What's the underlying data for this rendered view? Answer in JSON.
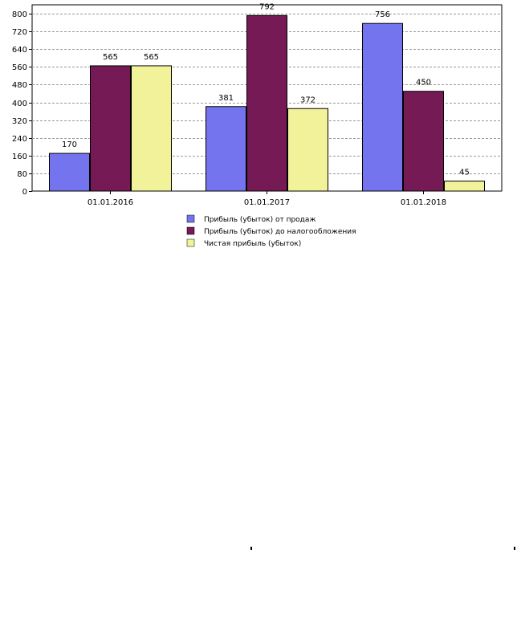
{
  "chart_data": {
    "type": "bar",
    "categories": [
      "01.01.2016",
      "01.01.2017",
      "01.01.2018"
    ],
    "series": [
      {
        "name": "Прибыль (убыток) от продаж",
        "color": "#7474ee",
        "values": [
          170,
          381,
          756
        ]
      },
      {
        "name": "Прибыль (убыток) до налогообложения",
        "color": "#751a55",
        "values": [
          565,
          792,
          450
        ]
      },
      {
        "name": "Чистая прибыль (убыток)",
        "color": "#f2f29a",
        "values": [
          565,
          372,
          45
        ]
      }
    ],
    "data_labels": [
      [
        "170",
        "381",
        "756"
      ],
      [
        "565",
        "792",
        "450"
      ],
      [
        "565",
        "372",
        "45"
      ]
    ],
    "y_ticks": [
      0,
      80,
      160,
      240,
      320,
      400,
      480,
      560,
      640,
      720,
      800
    ],
    "ylim": [
      0,
      840
    ],
    "grid": true,
    "legend_position": "bottom-center",
    "title": "",
    "xlabel": "",
    "ylabel": ""
  }
}
